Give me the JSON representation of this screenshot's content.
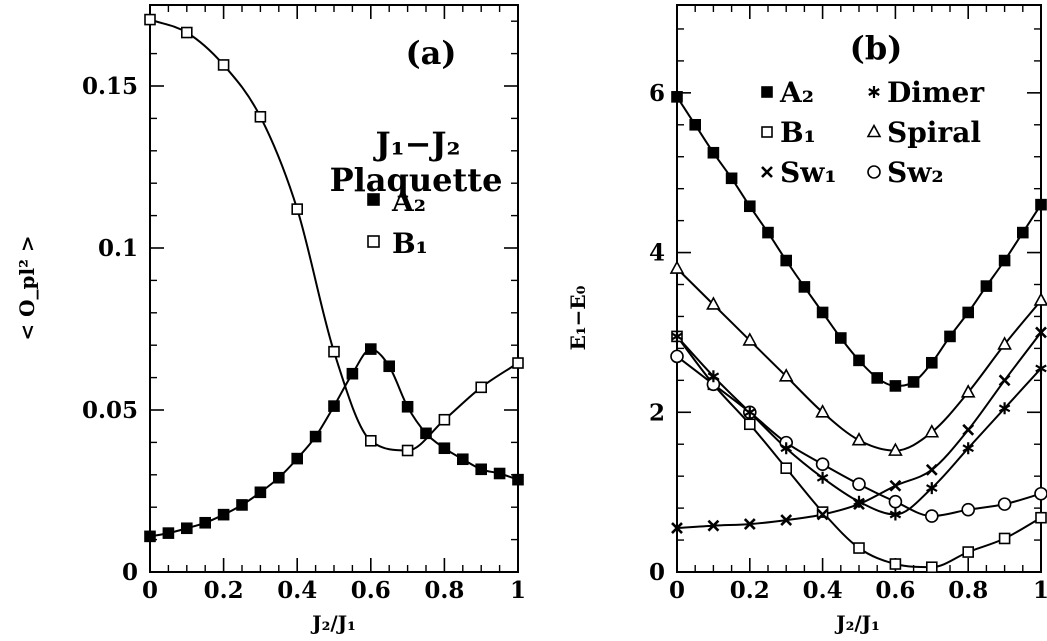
{
  "chart_data": [
    {
      "type": "line",
      "panel_label": "(a)",
      "xlabel": "J₂/J₁",
      "ylabel": "< O_pl² >",
      "xlim": [
        0,
        1
      ],
      "ylim": [
        0,
        0.175
      ],
      "xticks": [
        "0",
        "0.2",
        "0.4",
        "0.6",
        "0.8",
        "1"
      ],
      "yticks": [
        "0",
        "0.05",
        "0.1",
        "0.15"
      ],
      "annotation": [
        "J₁−J₂",
        "Plaquette"
      ],
      "grid": false,
      "legend": "right",
      "series": [
        {
          "name": "A₂",
          "marker": "filled-square",
          "x": [
            0,
            0.05,
            0.1,
            0.15,
            0.2,
            0.25,
            0.3,
            0.35,
            0.4,
            0.45,
            0.5,
            0.55,
            0.6,
            0.65,
            0.7,
            0.75,
            0.8,
            0.85,
            0.9,
            0.95,
            1.0
          ],
          "y": [
            0.011,
            0.012,
            0.0135,
            0.0152,
            0.0177,
            0.0207,
            0.0246,
            0.0291,
            0.035,
            0.0418,
            0.0512,
            0.0612,
            0.0688,
            0.0635,
            0.051,
            0.0428,
            0.0382,
            0.0348,
            0.0317,
            0.0304,
            0.0285
          ]
        },
        {
          "name": "B₁",
          "marker": "open-square",
          "x": [
            0,
            0.1,
            0.2,
            0.3,
            0.4,
            0.5,
            0.6,
            0.7,
            0.8,
            0.9,
            1.0
          ],
          "y": [
            0.1705,
            0.1665,
            0.1565,
            0.1405,
            0.112,
            0.068,
            0.0405,
            0.0375,
            0.047,
            0.057,
            0.0645
          ]
        }
      ]
    },
    {
      "type": "line",
      "panel_label": "(b)",
      "xlabel": "J₂/J₁",
      "ylabel": "E₁−E₀",
      "xlim": [
        0,
        1
      ],
      "ylim": [
        0,
        7.1
      ],
      "xticks": [
        "0",
        "0.2",
        "0.4",
        "0.6",
        "0.8",
        "1"
      ],
      "yticks": [
        "0",
        "2",
        "4",
        "6"
      ],
      "grid": false,
      "legend": "top",
      "series": [
        {
          "name": "A₂",
          "marker": "filled-square",
          "x": [
            0,
            0.05,
            0.1,
            0.15,
            0.2,
            0.25,
            0.3,
            0.35,
            0.4,
            0.45,
            0.5,
            0.55,
            0.6,
            0.65,
            0.7,
            0.75,
            0.8,
            0.85,
            0.9,
            0.95,
            1.0
          ],
          "y": [
            5.95,
            5.6,
            5.25,
            4.93,
            4.58,
            4.25,
            3.9,
            3.57,
            3.25,
            2.93,
            2.65,
            2.43,
            2.33,
            2.38,
            2.62,
            2.95,
            3.25,
            3.58,
            3.9,
            4.25,
            4.6
          ]
        },
        {
          "name": "Spiral",
          "marker": "open-triangle",
          "x": [
            0,
            0.1,
            0.2,
            0.3,
            0.4,
            0.5,
            0.6,
            0.7,
            0.8,
            0.9,
            1.0
          ],
          "y": [
            3.8,
            3.35,
            2.9,
            2.45,
            2.0,
            1.65,
            1.52,
            1.75,
            2.25,
            2.85,
            3.4
          ]
        },
        {
          "name": "B₁",
          "marker": "open-square",
          "x": [
            0,
            0.1,
            0.2,
            0.3,
            0.4,
            0.5,
            0.6,
            0.7,
            0.8,
            0.9,
            1.0
          ],
          "y": [
            2.95,
            2.35,
            1.85,
            1.3,
            0.75,
            0.3,
            0.1,
            0.06,
            0.25,
            0.42,
            0.68
          ]
        },
        {
          "name": "Sw₁",
          "marker": "x",
          "x": [
            0,
            0.1,
            0.2,
            0.3,
            0.4,
            0.5,
            0.6,
            0.7,
            0.8,
            0.9,
            1.0
          ],
          "y": [
            0.55,
            0.58,
            0.6,
            0.65,
            0.72,
            0.85,
            1.08,
            1.28,
            1.78,
            2.4,
            3.0
          ]
        },
        {
          "name": "Sw₂",
          "marker": "open-circle",
          "x": [
            0,
            0.1,
            0.2,
            0.3,
            0.4,
            0.5,
            0.6,
            0.7,
            0.8,
            0.9,
            1.0
          ],
          "y": [
            2.7,
            2.35,
            2.0,
            1.62,
            1.35,
            1.1,
            0.88,
            0.7,
            0.78,
            0.85,
            0.98
          ]
        },
        {
          "name": "Dimer",
          "marker": "star",
          "x": [
            0,
            0.1,
            0.2,
            0.3,
            0.4,
            0.5,
            0.6,
            0.7,
            0.8,
            0.9,
            1.0
          ],
          "y": [
            2.95,
            2.45,
            2.0,
            1.55,
            1.18,
            0.88,
            0.72,
            1.05,
            1.55,
            2.05,
            2.55
          ]
        }
      ]
    }
  ]
}
